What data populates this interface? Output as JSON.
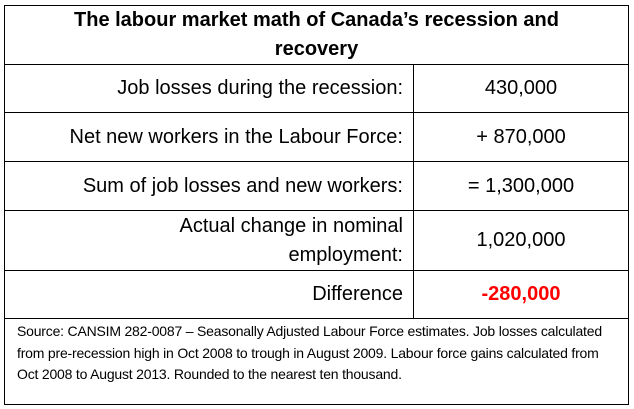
{
  "title": "The labour market math of Canada’s recession and recovery",
  "rows": [
    {
      "label": "Job losses during the recession:",
      "value": "430,000"
    },
    {
      "label": "Net new workers in the Labour Force:",
      "value": "+ 870,000"
    },
    {
      "label": "Sum of job losses and new workers:",
      "value": "= 1,300,000"
    },
    {
      "label": "Actual change in nominal employment:",
      "value": "1,020,000"
    },
    {
      "label": "Difference",
      "value": "-280,000"
    }
  ],
  "highlight_color": "#ff0000",
  "source": "Source: CANSIM 282-0087 – Seasonally Adjusted Labour Force estimates. Job losses calculated from pre-recession high in Oct 2008 to trough in August 2009. Labour force gains calculated from Oct 2008 to August 2013. Rounded to the nearest ten thousand."
}
